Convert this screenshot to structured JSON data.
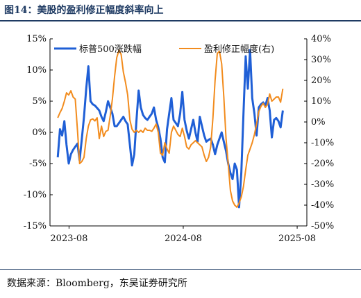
{
  "figure": {
    "title": "图14：美股的盈利修正幅度斜率向上",
    "source": "数据来源：Bloomberg，东吴证券研究所"
  },
  "colors": {
    "blue": "#1f5fd6",
    "orange": "#f28c1e",
    "axis": "#000000",
    "title": "#1f3b63"
  },
  "chart_data": {
    "type": "line",
    "title": "",
    "xlabel": "",
    "ylabel": "",
    "x_range": [
      "2023-06",
      "2025-09"
    ],
    "x_ticks": [
      "2023-08",
      "2024-08",
      "2025-08"
    ],
    "y_left": {
      "range": [
        -15,
        15
      ],
      "ticks": [
        "15%",
        "10%",
        "5%",
        "0%",
        "-5%",
        "-10%",
        "-15%"
      ],
      "values": [
        15,
        10,
        5,
        0,
        -5,
        -10,
        -15
      ]
    },
    "y_right": {
      "range": [
        -50,
        40
      ],
      "ticks": [
        "40%",
        "30%",
        "20%",
        "10%",
        "0%",
        "-10%",
        "-20%",
        "-30%",
        "-40%",
        "-50%"
      ],
      "values": [
        40,
        30,
        20,
        10,
        0,
        -10,
        -20,
        -30,
        -40,
        -50
      ]
    },
    "grid": false,
    "legend_position": "top",
    "series": [
      {
        "name": "标普500涨跌幅",
        "axis": "left",
        "color": "#1f5fd6",
        "points": [
          [
            "2023-06-26",
            -4.0
          ],
          [
            "2023-07-03",
            0.5
          ],
          [
            "2023-07-10",
            -0.5
          ],
          [
            "2023-07-17",
            1.8
          ],
          [
            "2023-07-24",
            -2.0
          ],
          [
            "2023-07-31",
            -5.0
          ],
          [
            "2023-08-07",
            -3.5
          ],
          [
            "2023-08-14",
            -2.8
          ],
          [
            "2023-08-21",
            -2.3
          ],
          [
            "2023-08-28",
            -1.8
          ],
          [
            "2023-09-04",
            -4.5
          ],
          [
            "2023-09-11",
            -1.0
          ],
          [
            "2023-09-18",
            2.5
          ],
          [
            "2023-09-25",
            7.0
          ],
          [
            "2023-10-02",
            10.6
          ],
          [
            "2023-10-09",
            5.0
          ],
          [
            "2023-10-16",
            4.5
          ],
          [
            "2023-10-23",
            4.3
          ],
          [
            "2023-10-30",
            3.9
          ],
          [
            "2023-11-06",
            3.5
          ],
          [
            "2023-11-13",
            2.5
          ],
          [
            "2023-11-20",
            1.8
          ],
          [
            "2023-11-27",
            3.3
          ],
          [
            "2023-12-04",
            5.0
          ],
          [
            "2023-12-11",
            4.0
          ],
          [
            "2023-12-18",
            3.0
          ],
          [
            "2023-12-25",
            1.0
          ],
          [
            "2024-01-01",
            1.0
          ],
          [
            "2024-01-08",
            1.5
          ],
          [
            "2024-01-15",
            2.0
          ],
          [
            "2024-01-22",
            2.5
          ],
          [
            "2024-01-29",
            1.8
          ],
          [
            "2024-02-05",
            1.3
          ],
          [
            "2024-02-12",
            -2.0
          ],
          [
            "2024-02-19",
            -5.3
          ],
          [
            "2024-02-26",
            -3.5
          ],
          [
            "2024-03-04",
            1.8
          ],
          [
            "2024-03-11",
            6.7
          ],
          [
            "2024-03-18",
            4.0
          ],
          [
            "2024-03-25",
            2.8
          ],
          [
            "2024-04-01",
            2.3
          ],
          [
            "2024-04-08",
            2.0
          ],
          [
            "2024-04-15",
            2.5
          ],
          [
            "2024-04-22",
            3.0
          ],
          [
            "2024-04-29",
            4.0
          ],
          [
            "2024-05-06",
            2.0
          ],
          [
            "2024-05-13",
            0.8
          ],
          [
            "2024-05-20",
            -1.0
          ],
          [
            "2024-05-27",
            -4.0
          ],
          [
            "2024-06-03",
            -4.8
          ],
          [
            "2024-06-10",
            0.5
          ],
          [
            "2024-06-17",
            3.0
          ],
          [
            "2024-06-24",
            5.5
          ],
          [
            "2024-07-01",
            2.0
          ],
          [
            "2024-07-08",
            1.5
          ],
          [
            "2024-07-15",
            1.0
          ],
          [
            "2024-07-22",
            3.0
          ],
          [
            "2024-07-29",
            6.5
          ],
          [
            "2024-08-05",
            2.0
          ],
          [
            "2024-08-12",
            0.3
          ],
          [
            "2024-08-19",
            -1.0
          ],
          [
            "2024-08-26",
            0.5
          ],
          [
            "2024-09-02",
            2.0
          ],
          [
            "2024-09-09",
            0.0
          ],
          [
            "2024-09-16",
            -1.5
          ],
          [
            "2024-09-23",
            2.5
          ],
          [
            "2024-09-30",
            1.0
          ],
          [
            "2024-10-07",
            -0.5
          ],
          [
            "2024-10-14",
            -1.5
          ],
          [
            "2024-10-21",
            -1.2
          ],
          [
            "2024-10-28",
            -1.0
          ],
          [
            "2024-11-04",
            -2.0
          ],
          [
            "2024-11-11",
            -3.5
          ],
          [
            "2024-11-18",
            -2.0
          ],
          [
            "2024-11-25",
            -1.0
          ],
          [
            "2024-12-02",
            0.0
          ],
          [
            "2024-12-09",
            -1.5
          ],
          [
            "2024-12-16",
            -3.0
          ],
          [
            "2024-12-23",
            -5.0
          ],
          [
            "2024-12-30",
            -6.5
          ],
          [
            "2025-01-06",
            -7.5
          ],
          [
            "2025-01-13",
            -5.0
          ],
          [
            "2025-01-20",
            -6.0
          ],
          [
            "2025-01-27",
            -12.0
          ],
          [
            "2025-02-03",
            -6.5
          ],
          [
            "2025-02-10",
            3.0
          ],
          [
            "2025-02-17",
            12.2
          ],
          [
            "2025-02-24",
            7.0
          ],
          [
            "2025-03-03",
            13.2
          ],
          [
            "2025-03-10",
            5.5
          ],
          [
            "2025-03-17",
            3.0
          ],
          [
            "2025-03-24",
            -0.5
          ],
          [
            "2025-03-31",
            4.0
          ],
          [
            "2025-04-07",
            4.5
          ],
          [
            "2025-04-14",
            4.8
          ],
          [
            "2025-04-21",
            4.3
          ],
          [
            "2025-04-28",
            5.5
          ],
          [
            "2025-05-05",
            3.5
          ],
          [
            "2025-05-12",
            -0.8
          ],
          [
            "2025-05-19",
            2.0
          ],
          [
            "2025-05-26",
            2.3
          ],
          [
            "2025-06-02",
            1.8
          ],
          [
            "2025-06-09",
            0.8
          ],
          [
            "2025-06-16",
            3.5
          ]
        ]
      },
      {
        "name": "盈利修正幅度(右)",
        "axis": "right",
        "color": "#f28c1e",
        "points": [
          [
            "2023-06-26",
            2.0
          ],
          [
            "2023-07-03",
            4.5
          ],
          [
            "2023-07-10",
            6.5
          ],
          [
            "2023-07-17",
            10.0
          ],
          [
            "2023-07-24",
            14.0
          ],
          [
            "2023-07-31",
            13.0
          ],
          [
            "2023-08-07",
            15.0
          ],
          [
            "2023-08-14",
            12.0
          ],
          [
            "2023-08-21",
            11.0
          ],
          [
            "2023-08-28",
            -4.0
          ],
          [
            "2023-09-04",
            -20.0
          ],
          [
            "2023-09-11",
            -19.0
          ],
          [
            "2023-09-18",
            -17.0
          ],
          [
            "2023-09-25",
            -8.0
          ],
          [
            "2023-10-02",
            -2.0
          ],
          [
            "2023-10-09",
            1.0
          ],
          [
            "2023-10-16",
            1.5
          ],
          [
            "2023-10-23",
            0.5
          ],
          [
            "2023-10-30",
            2.0
          ],
          [
            "2023-11-06",
            -8.0
          ],
          [
            "2023-11-13",
            -2.0
          ],
          [
            "2023-11-20",
            -7.0
          ],
          [
            "2023-11-27",
            -4.5
          ],
          [
            "2023-12-04",
            -4.0
          ],
          [
            "2023-12-11",
            3.0
          ],
          [
            "2023-12-18",
            11.0
          ],
          [
            "2023-12-25",
            22.0
          ],
          [
            "2024-01-01",
            31.0
          ],
          [
            "2024-01-08",
            34.5
          ],
          [
            "2024-01-15",
            32.5
          ],
          [
            "2024-01-22",
            24.0
          ],
          [
            "2024-01-29",
            19.0
          ],
          [
            "2024-02-05",
            13.0
          ],
          [
            "2024-02-12",
            1.0
          ],
          [
            "2024-02-19",
            -3.5
          ],
          [
            "2024-02-26",
            -5.0
          ],
          [
            "2024-03-04",
            -4.0
          ],
          [
            "2024-03-11",
            -5.0
          ],
          [
            "2024-03-18",
            -4.0
          ],
          [
            "2024-03-25",
            -5.0
          ],
          [
            "2024-04-01",
            -3.0
          ],
          [
            "2024-04-08",
            -4.0
          ],
          [
            "2024-04-15",
            -4.0
          ],
          [
            "2024-04-22",
            -4.5
          ],
          [
            "2024-04-29",
            -3.0
          ],
          [
            "2024-05-06",
            -1.0
          ],
          [
            "2024-05-13",
            -5.0
          ],
          [
            "2024-05-20",
            -15.0
          ],
          [
            "2024-05-27",
            -16.0
          ],
          [
            "2024-06-03",
            -10.0
          ],
          [
            "2024-06-10",
            -13.0
          ],
          [
            "2024-06-17",
            -15.0
          ],
          [
            "2024-06-24",
            -5.0
          ],
          [
            "2024-07-01",
            -2.0
          ],
          [
            "2024-07-08",
            -4.0
          ],
          [
            "2024-07-15",
            -6.0
          ],
          [
            "2024-07-22",
            -7.0
          ],
          [
            "2024-07-29",
            -3.0
          ],
          [
            "2024-08-05",
            -7.0
          ],
          [
            "2024-08-12",
            -12.0
          ],
          [
            "2024-08-19",
            -13.0
          ],
          [
            "2024-08-26",
            -11.0
          ],
          [
            "2024-09-02",
            -10.0
          ],
          [
            "2024-09-09",
            -9.0
          ],
          [
            "2024-09-16",
            -10.0
          ],
          [
            "2024-09-23",
            -11.0
          ],
          [
            "2024-09-30",
            -12.0
          ],
          [
            "2024-10-07",
            -16.0
          ],
          [
            "2024-10-14",
            -19.0
          ],
          [
            "2024-10-21",
            -17.0
          ],
          [
            "2024-10-28",
            -12.0
          ],
          [
            "2024-11-04",
            2.0
          ],
          [
            "2024-11-11",
            20.0
          ],
          [
            "2024-11-18",
            33.0
          ],
          [
            "2024-11-25",
            34.0
          ],
          [
            "2024-12-02",
            28.0
          ],
          [
            "2024-12-09",
            12.0
          ],
          [
            "2024-12-16",
            -8.0
          ],
          [
            "2024-12-23",
            -20.0
          ],
          [
            "2024-12-30",
            -33.0
          ],
          [
            "2025-01-06",
            -38.0
          ],
          [
            "2025-01-13",
            -40.0
          ],
          [
            "2025-01-20",
            -41.0
          ],
          [
            "2025-01-27",
            -39.0
          ],
          [
            "2025-02-03",
            -36.0
          ],
          [
            "2025-02-10",
            -31.0
          ],
          [
            "2025-02-17",
            -23.0
          ],
          [
            "2025-02-24",
            -16.0
          ],
          [
            "2025-03-03",
            -13.0
          ],
          [
            "2025-03-10",
            -10.0
          ],
          [
            "2025-03-17",
            -6.0
          ],
          [
            "2025-03-24",
            -1.0
          ],
          [
            "2025-03-31",
            5.0
          ],
          [
            "2025-04-07",
            7.5
          ],
          [
            "2025-04-14",
            9.0
          ],
          [
            "2025-04-21",
            7.0
          ],
          [
            "2025-04-28",
            8.5
          ],
          [
            "2025-05-05",
            13.5
          ],
          [
            "2025-05-12",
            10.0
          ],
          [
            "2025-05-19",
            11.0
          ],
          [
            "2025-05-26",
            12.0
          ],
          [
            "2025-06-02",
            12.0
          ],
          [
            "2025-06-09",
            9.5
          ],
          [
            "2025-06-16",
            16.0
          ]
        ]
      }
    ]
  }
}
